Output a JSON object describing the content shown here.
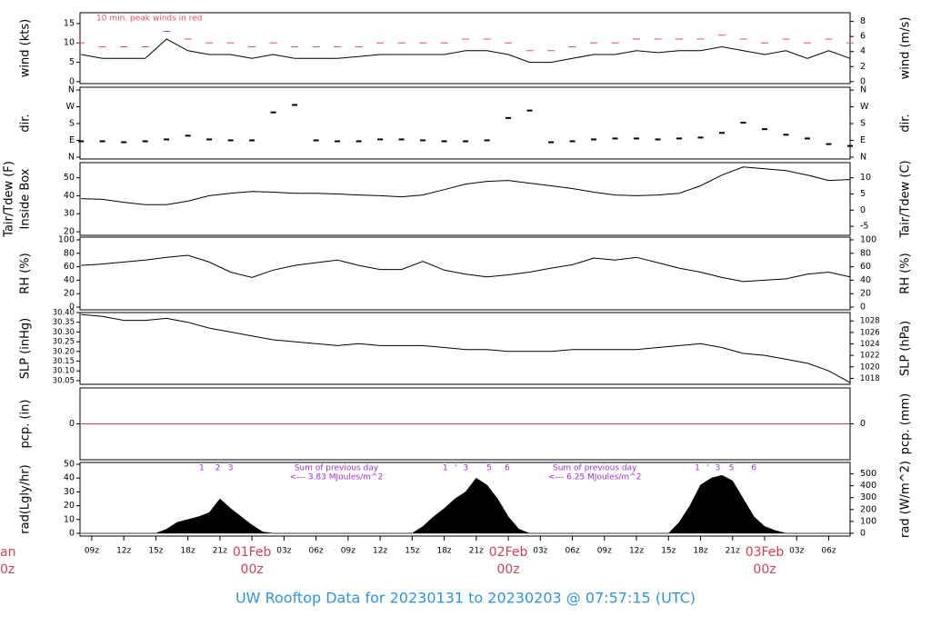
{
  "title": "UW Rooftop Data for 20230131  to  20230203 @ 07:57:15  (UTC)",
  "clipped_labels": [
    "an",
    "0z"
  ],
  "time_axis": {
    "xlim": [
      7.9,
      80
    ],
    "xticks": [
      {
        "value": 9,
        "label": "09z"
      },
      {
        "value": 12,
        "label": "12z"
      },
      {
        "value": 15,
        "label": "15z"
      },
      {
        "value": 18,
        "label": "18z"
      },
      {
        "value": 21,
        "label": "21z"
      },
      {
        "value": 24,
        "label": "00z"
      },
      {
        "value": 27,
        "label": "03z"
      },
      {
        "value": 30,
        "label": "06z"
      },
      {
        "value": 33,
        "label": "09z"
      },
      {
        "value": 36,
        "label": "12z"
      },
      {
        "value": 39,
        "label": "15z"
      },
      {
        "value": 42,
        "label": "18z"
      },
      {
        "value": 45,
        "label": "21z"
      },
      {
        "value": 48,
        "label": "00z"
      },
      {
        "value": 51,
        "label": "03z"
      },
      {
        "value": 54,
        "label": "06z"
      },
      {
        "value": 57,
        "label": "09z"
      },
      {
        "value": 60,
        "label": "12z"
      },
      {
        "value": 63,
        "label": "15z"
      },
      {
        "value": 66,
        "label": "18z"
      },
      {
        "value": 69,
        "label": "21z"
      },
      {
        "value": 72,
        "label": "00z"
      },
      {
        "value": 75,
        "label": "03z"
      },
      {
        "value": 78,
        "label": "06z"
      }
    ],
    "date_labels": [
      {
        "value": 24,
        "label": "01Feb"
      },
      {
        "value": 48,
        "label": "02Feb"
      },
      {
        "value": 72,
        "label": "03Feb"
      }
    ],
    "date_color": "#d0405a"
  },
  "chart_data": [
    {
      "type": "line",
      "ylabel": "wind (kts)",
      "y2label": "wind (m/s)",
      "annotation": "10 min. peak winds in red",
      "annotation_color": "#e0506a",
      "ylim": [
        -0.5,
        17.8
      ],
      "yticks": [
        0,
        5,
        10,
        15
      ],
      "y2lim": [
        -0.26,
        9.16
      ],
      "y2ticks": [
        0,
        2,
        4,
        6,
        8
      ],
      "x": [
        8,
        10,
        12,
        14,
        16,
        18,
        20,
        22,
        24,
        26,
        28,
        30,
        32,
        34,
        36,
        38,
        40,
        42,
        44,
        46,
        48,
        50,
        52,
        54,
        56,
        58,
        60,
        62,
        64,
        66,
        68,
        70,
        72,
        74,
        76,
        78,
        80
      ],
      "series": [
        {
          "color": "#000000",
          "style": "solid",
          "values": [
            7,
            6,
            6,
            6,
            11,
            8,
            7,
            7,
            6,
            7,
            6,
            6,
            6,
            6.5,
            7,
            7,
            7,
            7,
            8,
            8,
            7,
            5,
            5,
            6,
            7,
            7,
            8,
            7.5,
            8,
            8,
            9,
            8,
            7,
            8,
            6,
            8,
            6
          ]
        },
        {
          "color": "#e0506a",
          "style": "dash",
          "values": [
            10,
            9,
            9,
            9,
            13,
            11,
            10,
            10,
            9,
            10,
            9,
            9,
            9,
            9,
            10,
            10,
            10,
            10,
            11,
            11,
            10,
            8,
            8,
            9,
            10,
            10,
            11,
            11,
            11,
            11,
            12,
            11,
            10,
            11,
            10,
            11,
            10
          ]
        }
      ]
    },
    {
      "type": "scatter",
      "ylabel": "dir.",
      "y2label": "dir.",
      "ylim": [
        -10,
        375
      ],
      "yticks": [
        {
          "value": 0,
          "label": "N"
        },
        {
          "value": 90,
          "label": "E"
        },
        {
          "value": 180,
          "label": "S"
        },
        {
          "value": 270,
          "label": "W"
        },
        {
          "value": 360,
          "label": "N"
        }
      ],
      "y2lim": [
        -10,
        375
      ],
      "y2ticks": [
        {
          "value": 0,
          "label": "N"
        },
        {
          "value": 90,
          "label": "E"
        },
        {
          "value": 180,
          "label": "S"
        },
        {
          "value": 270,
          "label": "W"
        },
        {
          "value": 360,
          "label": "N"
        }
      ],
      "x": [
        8,
        10,
        12,
        14,
        16,
        18,
        20,
        22,
        24,
        26,
        28,
        30,
        32,
        34,
        36,
        38,
        40,
        42,
        44,
        46,
        48,
        50,
        52,
        54,
        56,
        58,
        60,
        62,
        64,
        66,
        68,
        70,
        72,
        74,
        76,
        78,
        80
      ],
      "series": [
        {
          "color": "#000000",
          "values": [
            85,
            85,
            80,
            85,
            95,
            115,
            95,
            90,
            90,
            240,
            280,
            90,
            85,
            85,
            95,
            95,
            90,
            85,
            85,
            90,
            210,
            250,
            80,
            85,
            95,
            100,
            100,
            95,
            100,
            105,
            130,
            185,
            150,
            120,
            100,
            70,
            60
          ]
        }
      ]
    },
    {
      "type": "line",
      "ylabel": [
        "Tair/Tdew (F)",
        "Inside Box"
      ],
      "y2label": "Tair/Tdew (C)",
      "ylim": [
        18,
        58.4
      ],
      "yticks": [
        20,
        30,
        40,
        50
      ],
      "y2lim": [
        -7.78,
        14.67
      ],
      "y2ticks": [
        -5,
        0,
        5,
        10
      ],
      "x": [
        8,
        10,
        12,
        14,
        16,
        18,
        20,
        22,
        24,
        26,
        28,
        30,
        32,
        34,
        36,
        38,
        40,
        42,
        44,
        46,
        48,
        50,
        52,
        54,
        56,
        58,
        60,
        62,
        64,
        66,
        68,
        70,
        72,
        74,
        76,
        78,
        80
      ],
      "series": [
        {
          "color": "#000000",
          "style": "solid",
          "values": [
            38.4,
            38,
            36.4,
            35,
            35,
            37,
            40,
            41.4,
            42.4,
            42,
            41.4,
            41.4,
            41,
            40.4,
            40,
            39.4,
            40.4,
            43.4,
            46.5,
            48,
            48.5,
            47,
            45.5,
            44,
            42,
            40.4,
            40,
            40.4,
            41.4,
            45.5,
            51.5,
            56,
            55,
            54,
            51.5,
            48.5,
            49
          ]
        }
      ]
    },
    {
      "type": "line",
      "ylabel": "RH (%)",
      "y2label": "RH (%)",
      "ylim": [
        -4,
        104
      ],
      "yticks": [
        0,
        20,
        40,
        60,
        80,
        100
      ],
      "y2lim": [
        -4,
        104
      ],
      "y2ticks": [
        0,
        20,
        40,
        60,
        80,
        100
      ],
      "x": [
        8,
        10,
        12,
        14,
        16,
        18,
        20,
        22,
        24,
        26,
        28,
        30,
        32,
        34,
        36,
        38,
        40,
        42,
        44,
        46,
        48,
        50,
        52,
        54,
        56,
        58,
        60,
        62,
        64,
        66,
        68,
        70,
        72,
        74,
        76,
        78,
        80
      ],
      "series": [
        {
          "color": "#000000",
          "style": "solid",
          "values": [
            62,
            64,
            67,
            70,
            74,
            77,
            67,
            52,
            44,
            55,
            62,
            66,
            70,
            62,
            56,
            56,
            68,
            55,
            49,
            45,
            48,
            52,
            58,
            63,
            73,
            70,
            74,
            66,
            58,
            52,
            44,
            38,
            40,
            42,
            49,
            52,
            45
          ]
        }
      ]
    },
    {
      "type": "line",
      "ylabel": "SLP (inHg)",
      "y2label": "SLP (hPa)",
      "ylim": [
        30.031,
        30.4
      ],
      "yticks": [
        {
          "value": 30.05,
          "label": "30.05"
        },
        {
          "value": 30.1,
          "label": "30.10"
        },
        30.15,
        {
          "value": 30.2,
          "label": "30.20"
        },
        30.25,
        {
          "value": 30.3,
          "label": "30.30"
        },
        30.35,
        {
          "value": 30.4,
          "label": "30.40"
        }
      ],
      "y2lim": [
        1016.96,
        1029.46
      ],
      "y2ticks": [
        1018,
        1020,
        1022,
        1024,
        1026,
        1028
      ],
      "x": [
        8,
        10,
        12,
        14,
        16,
        18,
        20,
        22,
        24,
        26,
        28,
        30,
        32,
        34,
        36,
        38,
        40,
        42,
        44,
        46,
        48,
        50,
        52,
        54,
        56,
        58,
        60,
        62,
        64,
        66,
        68,
        70,
        72,
        74,
        76,
        78,
        80
      ],
      "series": [
        {
          "color": "#000000",
          "style": "solid",
          "values": [
            30.39,
            30.38,
            30.36,
            30.36,
            30.37,
            30.35,
            30.32,
            30.3,
            30.28,
            30.26,
            30.25,
            30.24,
            30.23,
            30.24,
            30.23,
            30.23,
            30.23,
            30.22,
            30.21,
            30.21,
            30.2,
            30.2,
            30.2,
            30.21,
            30.21,
            30.21,
            30.21,
            30.22,
            30.23,
            30.24,
            30.22,
            30.19,
            30.18,
            30.16,
            30.14,
            30.1,
            30.04
          ]
        }
      ]
    },
    {
      "type": "line",
      "ylabel": "pcp. (in)",
      "y2label": "pcp. (mm)",
      "ylim": [
        -1,
        1
      ],
      "yticks": [
        0
      ],
      "y2lim": [
        -1,
        1
      ],
      "y2ticks": [
        0
      ],
      "x": [
        8,
        80
      ],
      "series": [
        {
          "color": "#d0405a",
          "style": "solid",
          "values": [
            0,
            0
          ]
        }
      ]
    },
    {
      "type": "area",
      "ylabel": "rad(Lgly/hr)",
      "y2label": "rad (W/m^2)",
      "ylim": [
        -2,
        51.3
      ],
      "yticks": [
        0,
        10,
        20,
        30,
        40,
        50
      ],
      "y2lim": [
        -23.3,
        596
      ],
      "y2ticks": [
        0,
        100,
        200,
        300,
        400,
        500
      ],
      "annotation_color": "#a030d0",
      "annotations": [
        {
          "x": 31.9,
          "lines": [
            "Sum of previous day",
            "<--- 3.83 MJoules/m^2"
          ]
        },
        {
          "x": 56.1,
          "lines": [
            "Sum of previous day",
            "<--- 6.25 MJoules/m^2"
          ]
        }
      ],
      "hour_marks": [
        {
          "x": 19.3,
          "label": "1"
        },
        {
          "x": 20.8,
          "label": "2"
        },
        {
          "x": 22,
          "label": "3"
        },
        {
          "x": 42.1,
          "label": "1"
        },
        {
          "x": 43.1,
          "label": "'"
        },
        {
          "x": 44,
          "label": "3"
        },
        {
          "x": 46.2,
          "label": "5"
        },
        {
          "x": 47.9,
          "label": "6"
        },
        {
          "x": 65.7,
          "label": "1"
        },
        {
          "x": 66.7,
          "label": "'"
        },
        {
          "x": 67.6,
          "label": "3"
        },
        {
          "x": 68.9,
          "label": "5"
        },
        {
          "x": 71,
          "label": "6"
        }
      ],
      "x": [
        8,
        9,
        10,
        11,
        12,
        13,
        14,
        15,
        16,
        17,
        18,
        19,
        20,
        21,
        22,
        23,
        24,
        25,
        26,
        27,
        28,
        29,
        30,
        31,
        32,
        33,
        34,
        35,
        36,
        37,
        38,
        39,
        40,
        41,
        42,
        43,
        44,
        45,
        46,
        47,
        48,
        49,
        50,
        51,
        52,
        53,
        54,
        55,
        56,
        57,
        58,
        59,
        60,
        61,
        62,
        63,
        64,
        65,
        66,
        67,
        68,
        69,
        70,
        71,
        72,
        73,
        74,
        75,
        76,
        77,
        78,
        79,
        80
      ],
      "series": [
        {
          "color": "#000000",
          "values": [
            0,
            0,
            0,
            0,
            0,
            0,
            0,
            0,
            3,
            8,
            10,
            12,
            15,
            25,
            18,
            12,
            6,
            1,
            0,
            0,
            0,
            0,
            0,
            0,
            0,
            0,
            0,
            0,
            0,
            0,
            0,
            0,
            5,
            12,
            18,
            25,
            30,
            40,
            35,
            25,
            12,
            3,
            0,
            0,
            0,
            0,
            0,
            0,
            0,
            0,
            0,
            0,
            0,
            0,
            0,
            0,
            8,
            20,
            35,
            40,
            42,
            38,
            25,
            12,
            5,
            2,
            0,
            0,
            0,
            0,
            0,
            0,
            0
          ]
        }
      ]
    }
  ]
}
